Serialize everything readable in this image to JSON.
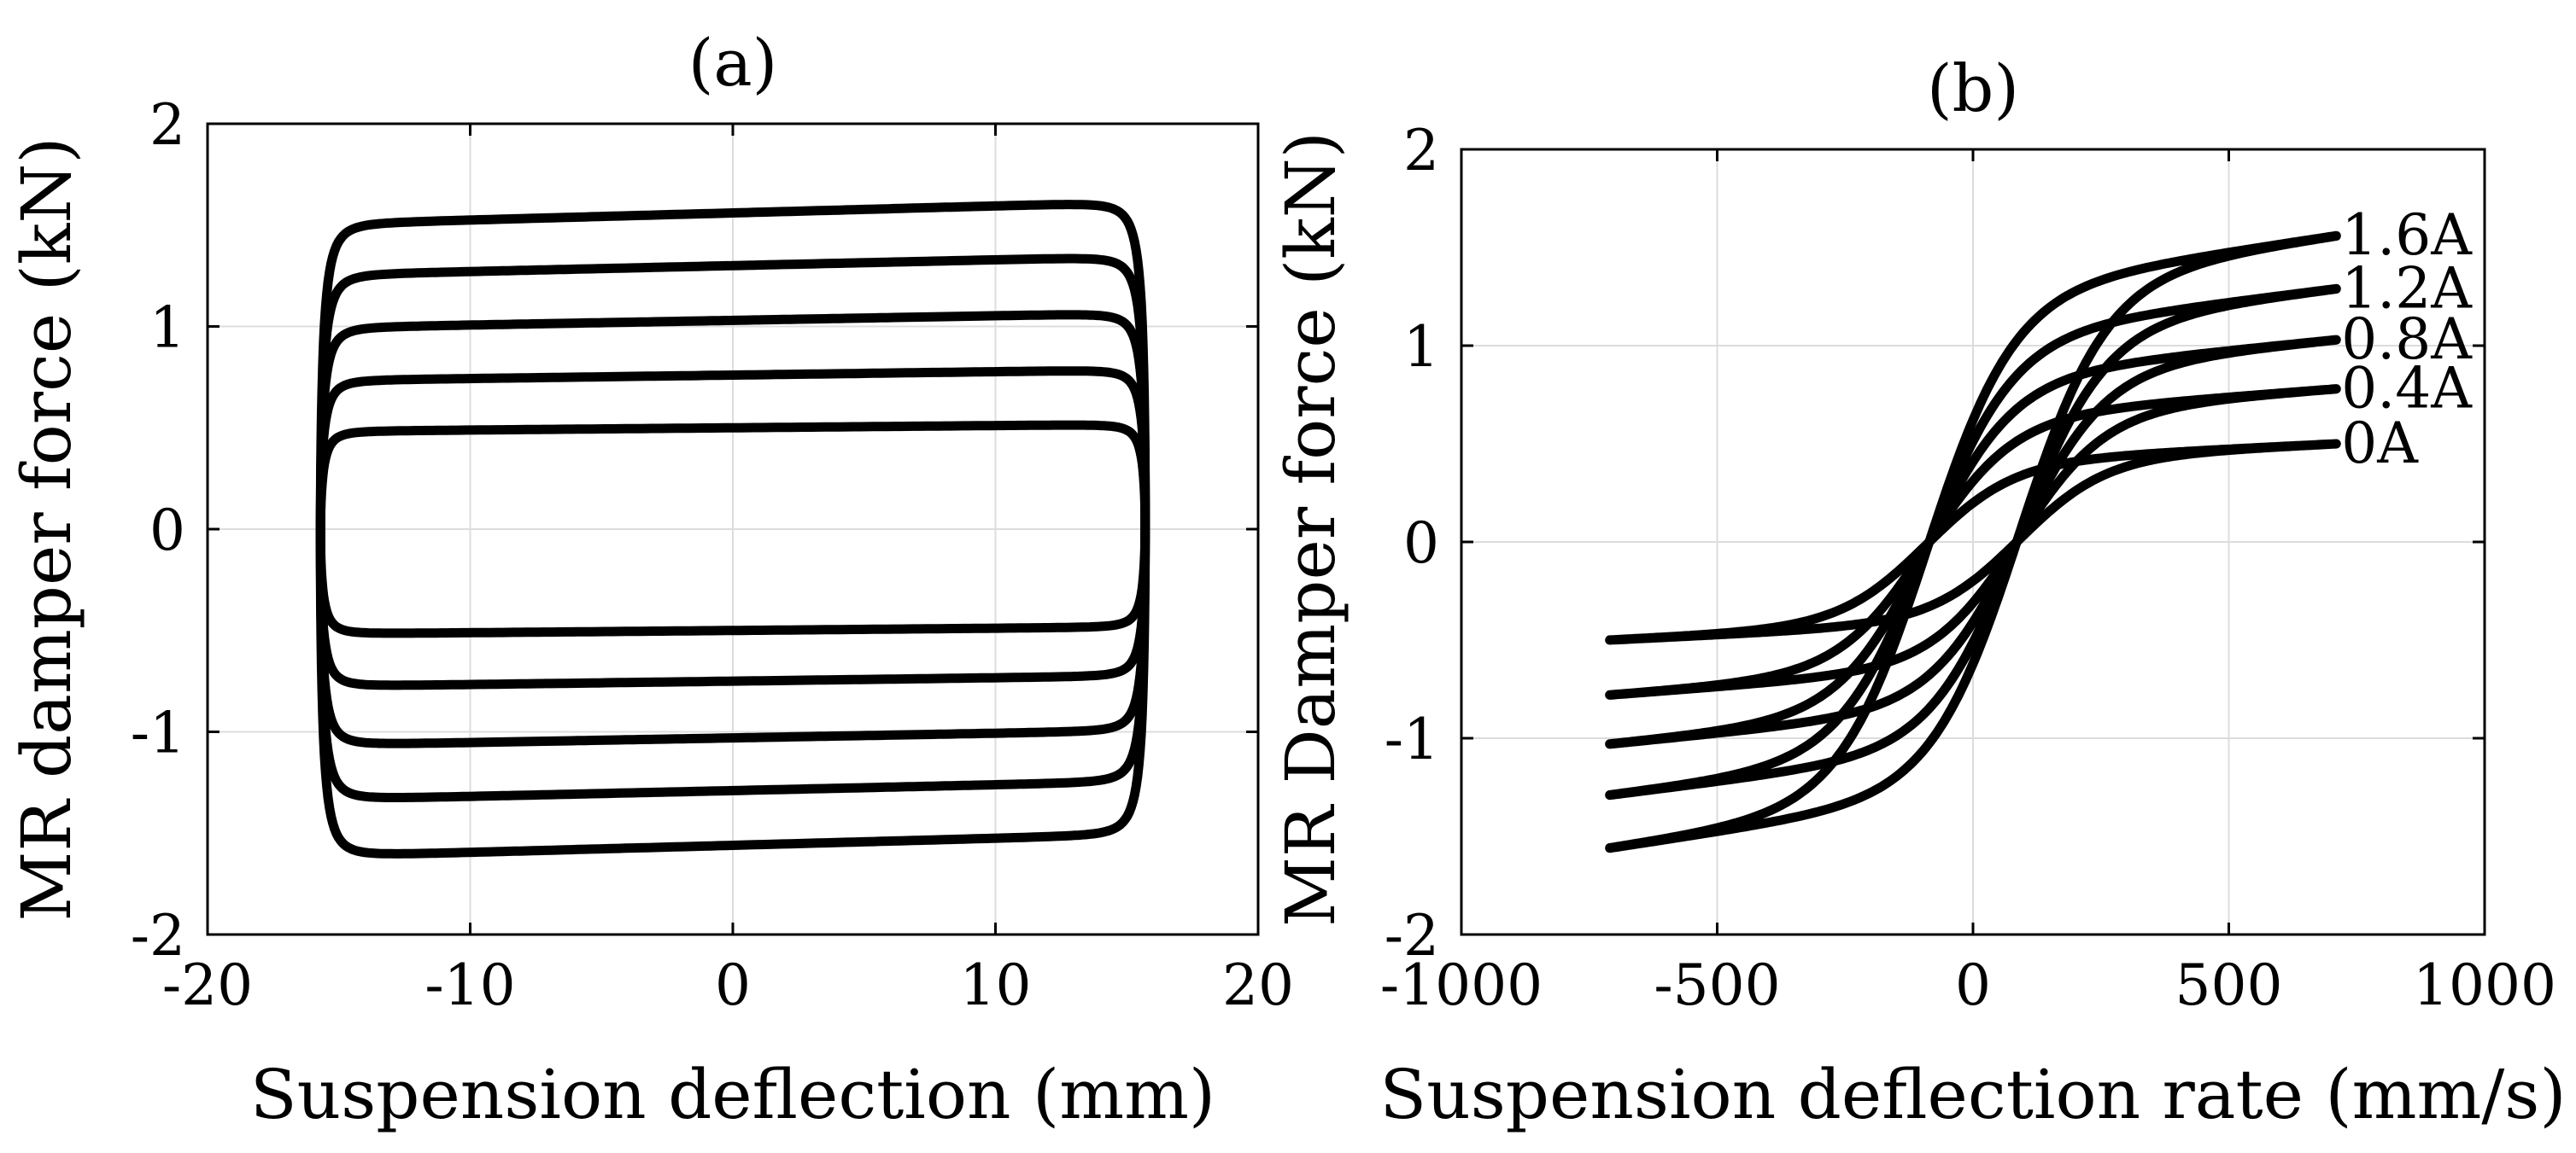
{
  "chart_data": [
    {
      "type": "line",
      "title": "(a)",
      "xlabel": "Suspension deflection (mm)",
      "ylabel": "MR damper force (kN)",
      "xlim": [
        -20,
        20
      ],
      "ylim": [
        -2,
        2
      ],
      "xticks": [
        -20,
        -10,
        0,
        10,
        20
      ],
      "yticks": [
        -2,
        -1,
        0,
        1,
        2
      ],
      "xtick_labels": [
        "-20",
        "-10",
        "0",
        "10",
        "20"
      ],
      "ytick_labels": [
        "-2",
        "-1",
        "0",
        "1",
        "2"
      ],
      "grid": true,
      "series": [
        {
          "name": "0A",
          "amplitude_mm": 15.7,
          "force_top_kN": 0.5,
          "force_bottom_kN": -0.5
        },
        {
          "name": "0.4A",
          "amplitude_mm": 15.7,
          "force_top_kN": 0.76,
          "force_bottom_kN": -0.75
        },
        {
          "name": "0.8A",
          "amplitude_mm": 15.7,
          "force_top_kN": 1.03,
          "force_bottom_kN": -1.03
        },
        {
          "name": "1.2A",
          "amplitude_mm": 15.7,
          "force_top_kN": 1.3,
          "force_bottom_kN": -1.29
        },
        {
          "name": "1.6A",
          "amplitude_mm": 15.7,
          "force_top_kN": 1.56,
          "force_bottom_kN": -1.56
        }
      ]
    },
    {
      "type": "line",
      "title": "(b)",
      "xlabel": "Suspension deflection rate (mm/s)",
      "ylabel": "MR Damper force (kN)",
      "xlim": [
        -1000,
        1000
      ],
      "ylim": [
        -2,
        2
      ],
      "xticks": [
        -1000,
        -500,
        0,
        500,
        1000
      ],
      "yticks": [
        -2,
        -1,
        0,
        1,
        2
      ],
      "xtick_labels": [
        "-1000",
        "-500",
        "0",
        "500",
        "1000"
      ],
      "ytick_labels": [
        "-2",
        "-1",
        "0",
        "1",
        "2"
      ],
      "grid": true,
      "series": [
        {
          "name": "0A",
          "label": "0A",
          "max_rate_mm_s": 710,
          "force_at_max_kN": 0.5,
          "zero_cross_rate_mm_s": 90
        },
        {
          "name": "0.4A",
          "label": "0.4A",
          "max_rate_mm_s": 710,
          "force_at_max_kN": 0.78,
          "zero_cross_rate_mm_s": 90
        },
        {
          "name": "0.8A",
          "label": "0.8A",
          "max_rate_mm_s": 710,
          "force_at_max_kN": 1.03,
          "zero_cross_rate_mm_s": 90
        },
        {
          "name": "1.2A",
          "label": "1.2A",
          "max_rate_mm_s": 710,
          "force_at_max_kN": 1.29,
          "zero_cross_rate_mm_s": 90
        },
        {
          "name": "1.6A",
          "label": "1.6A",
          "max_rate_mm_s": 710,
          "force_at_max_kN": 1.56,
          "zero_cross_rate_mm_s": 90
        }
      ]
    }
  ]
}
